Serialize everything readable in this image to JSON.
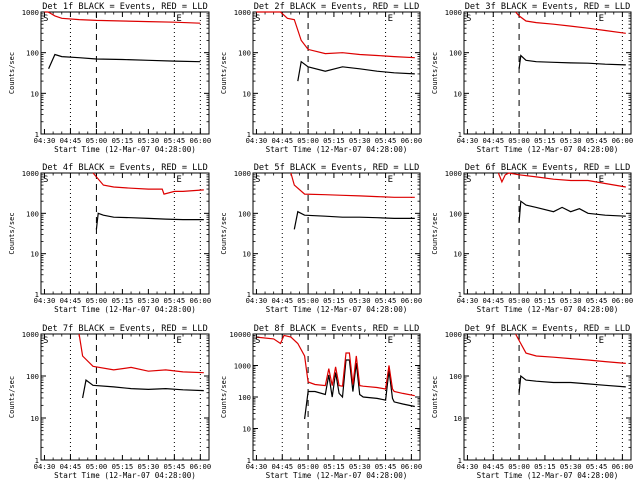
{
  "chart_data": [
    {
      "type": "line",
      "title": "Det 1f BLACK = Events, RED = LLD",
      "ymax": 1000,
      "ylabel": "Counts/sec",
      "xlabel": "Start Time (12-Mar-07 04:28:00)",
      "markers": {
        "S": "S",
        "E": "E"
      },
      "x_ticks": [
        "04:30",
        "04:45",
        "05:00",
        "05:15",
        "05:30",
        "05:45",
        "06:00"
      ],
      "y_ticks": [
        "1",
        "10",
        "100",
        "1000"
      ],
      "events_level": 65,
      "lld_level": 550,
      "series": [
        {
          "name": "BLACK = Events",
          "color": "#000000",
          "x": [
            0,
            2,
            2.4,
            6,
            10,
            20,
            30,
            45,
            60,
            75,
            90
          ],
          "y": [
            null,
            null,
            40,
            90,
            80,
            75,
            70,
            68,
            65,
            62,
            60
          ]
        },
        {
          "name": "RED = LLD",
          "color": "#dd0000",
          "x": [
            0,
            2,
            3,
            6,
            10,
            20,
            30,
            45,
            60,
            75,
            90
          ],
          "y": [
            1000,
            1000,
            950,
            800,
            700,
            650,
            620,
            600,
            580,
            560,
            530
          ]
        }
      ]
    },
    {
      "type": "line",
      "title": "Det 2f BLACK = Events, RED = LLD",
      "ymax": 1000,
      "ylabel": "Counts/sec",
      "xlabel": "Start Time (12-Mar-07 04:28:00)",
      "markers": {
        "S": "S",
        "E": "E"
      },
      "x_ticks": [
        "04:30",
        "04:45",
        "05:00",
        "05:15",
        "05:30",
        "05:45",
        "06:00"
      ],
      "y_ticks": [
        "1",
        "10",
        "100",
        "1000"
      ],
      "series": [
        {
          "name": "BLACK = Events",
          "color": "#000000",
          "x": [
            24,
            26,
            30,
            40,
            50,
            60,
            70,
            80,
            92
          ],
          "y": [
            20,
            60,
            45,
            35,
            45,
            40,
            35,
            32,
            30
          ]
        },
        {
          "name": "RED = LLD",
          "color": "#dd0000",
          "x": [
            0,
            14,
            18,
            22,
            26,
            30,
            40,
            50,
            60,
            70,
            80,
            92
          ],
          "y": [
            1000,
            1000,
            700,
            650,
            200,
            120,
            95,
            100,
            90,
            85,
            80,
            75
          ]
        }
      ]
    },
    {
      "type": "line",
      "title": "Det 3f BLACK = Events, RED = LLD",
      "ymax": 1000,
      "ylabel": "Counts/sec",
      "xlabel": "Start Time (12-Mar-07 04:28:00)",
      "markers": {
        "S": "S",
        "E": "E"
      },
      "x_ticks": [
        "04:30",
        "04:45",
        "05:00",
        "05:15",
        "05:30",
        "05:45",
        "06:00"
      ],
      "y_ticks": [
        "1",
        "10",
        "100",
        "1000"
      ],
      "series": [
        {
          "name": "BLACK = Events",
          "color": "#000000",
          "x": [
            30,
            31,
            34,
            40,
            50,
            60,
            70,
            80,
            92
          ],
          "y": [
            40,
            85,
            65,
            60,
            58,
            56,
            55,
            52,
            50
          ]
        },
        {
          "name": "RED = LLD",
          "color": "#dd0000",
          "x": [
            28,
            30,
            34,
            40,
            50,
            60,
            70,
            80,
            92
          ],
          "y": [
            1000,
            800,
            600,
            550,
            500,
            450,
            400,
            350,
            300
          ]
        }
      ]
    },
    {
      "type": "line",
      "title": "Det 4f BLACK = Events, RED = LLD",
      "ymax": 1000,
      "ylabel": "Counts/sec",
      "xlabel": "Start Time (12-Mar-07 04:28:00)",
      "markers": {
        "S": "S",
        "E": "E"
      },
      "x_ticks": [
        "04:30",
        "04:45",
        "05:00",
        "05:15",
        "05:30",
        "05:45",
        "06:00"
      ],
      "y_ticks": [
        "1",
        "10",
        "100",
        "1000"
      ],
      "series": [
        {
          "name": "BLACK = Events",
          "color": "#000000",
          "x": [
            30,
            31,
            34,
            40,
            50,
            60,
            70,
            80,
            92
          ],
          "y": [
            40,
            100,
            90,
            80,
            78,
            75,
            72,
            70,
            70
          ]
        },
        {
          "name": "RED = LLD",
          "color": "#dd0000",
          "x": [
            28,
            30,
            34,
            40,
            50,
            60,
            68,
            69,
            75,
            80,
            92
          ],
          "y": [
            1000,
            800,
            500,
            450,
            420,
            400,
            400,
            300,
            350,
            350,
            380
          ]
        }
      ]
    },
    {
      "type": "line",
      "title": "Det 5f BLACK = Events, RED = LLD",
      "ymax": 1000,
      "ylabel": "Counts/sec",
      "xlabel": "Start Time (12-Mar-07 04:28:00)",
      "markers": {
        "S": "S",
        "E": "E"
      },
      "x_ticks": [
        "04:30",
        "04:45",
        "05:00",
        "05:15",
        "05:30",
        "05:45",
        "06:00"
      ],
      "y_ticks": [
        "1",
        "10",
        "100",
        "1000"
      ],
      "series": [
        {
          "name": "BLACK = Events",
          "color": "#000000",
          "x": [
            22,
            24,
            28,
            40,
            50,
            60,
            70,
            80,
            92
          ],
          "y": [
            40,
            110,
            90,
            85,
            80,
            80,
            78,
            75,
            75
          ]
        },
        {
          "name": "RED = LLD",
          "color": "#dd0000",
          "x": [
            20,
            22,
            28,
            40,
            50,
            60,
            70,
            80,
            92
          ],
          "y": [
            1000,
            500,
            300,
            290,
            280,
            270,
            260,
            250,
            250
          ]
        }
      ]
    },
    {
      "type": "line",
      "title": "Det 6f BLACK = Events, RED = LLD",
      "ymax": 1000,
      "ylabel": "Counts/sec",
      "xlabel": "Start Time (12-Mar-07 04:28:00)",
      "markers": {
        "S": "S",
        "E": "E"
      },
      "x_ticks": [
        "04:30",
        "04:45",
        "05:00",
        "05:15",
        "05:30",
        "05:45",
        "06:00"
      ],
      "y_ticks": [
        "1",
        "10",
        "100",
        "1000"
      ],
      "series": [
        {
          "name": "BLACK = Events",
          "color": "#000000",
          "x": [
            30,
            31,
            34,
            40,
            50,
            55,
            60,
            65,
            70,
            80,
            92
          ],
          "y": [
            60,
            200,
            160,
            140,
            110,
            140,
            110,
            130,
            100,
            90,
            85
          ]
        },
        {
          "name": "RED = LLD",
          "color": "#dd0000",
          "x": [
            18,
            20,
            22,
            24,
            30,
            40,
            50,
            60,
            70,
            80,
            92
          ],
          "y": [
            1000,
            600,
            900,
            1000,
            900,
            800,
            700,
            650,
            650,
            550,
            450
          ]
        }
      ]
    },
    {
      "type": "line",
      "title": "Det 7f BLACK = Events, RED = LLD",
      "ymax": 1000,
      "ylabel": "Counts/sec",
      "xlabel": "Start Time (12-Mar-07 04:28:00)",
      "markers": {
        "S": "S",
        "E": "E"
      },
      "x_ticks": [
        "04:30",
        "04:45",
        "05:00",
        "05:15",
        "05:30",
        "05:45",
        "06:00"
      ],
      "y_ticks": [
        "1",
        "10",
        "100",
        "1000"
      ],
      "series": [
        {
          "name": "BLACK = Events",
          "color": "#000000",
          "x": [
            22,
            24,
            28,
            40,
            50,
            60,
            70,
            80,
            92
          ],
          "y": [
            30,
            80,
            60,
            55,
            50,
            48,
            50,
            47,
            45
          ]
        },
        {
          "name": "RED = LLD",
          "color": "#dd0000",
          "x": [
            20,
            22,
            28,
            40,
            50,
            60,
            70,
            80,
            92
          ],
          "y": [
            1000,
            300,
            170,
            140,
            160,
            130,
            140,
            125,
            120
          ]
        }
      ]
    },
    {
      "type": "line",
      "title": "Det 8f BLACK = Events, RED = LLD",
      "ymax": 10000,
      "ylabel": "Counts/sec",
      "xlabel": "Start Time (12-Mar-07 04:28:00)",
      "markers": {
        "S": "S",
        "E": "E"
      },
      "x_ticks": [
        "04:30",
        "04:45",
        "05:00",
        "05:15",
        "05:30",
        "05:45",
        "06:00"
      ],
      "y_ticks": [
        "1",
        "10",
        "100",
        "1000",
        "10000"
      ],
      "series": [
        {
          "name": "BLACK = Events",
          "color": "#000000",
          "x": [
            28,
            30,
            34,
            40,
            42,
            44,
            46,
            48,
            50,
            52,
            54,
            56,
            58,
            60,
            62,
            70,
            75,
            77,
            79,
            80,
            85,
            92
          ],
          "y": [
            20,
            150,
            150,
            120,
            500,
            100,
            600,
            130,
            100,
            1500,
            1500,
            150,
            1200,
            120,
            100,
            90,
            80,
            700,
            90,
            70,
            60,
            50
          ]
        },
        {
          "name": "RED = LLD",
          "color": "#dd0000",
          "x": [
            0,
            10,
            14,
            16,
            20,
            24,
            28,
            30,
            34,
            40,
            42,
            44,
            46,
            48,
            50,
            52,
            54,
            56,
            58,
            60,
            62,
            70,
            75,
            77,
            79,
            80,
            85,
            92
          ],
          "y": [
            8000,
            7000,
            5000,
            9000,
            8000,
            5000,
            2000,
            300,
            250,
            230,
            800,
            230,
            900,
            230,
            220,
            2500,
            2500,
            250,
            2000,
            230,
            220,
            200,
            180,
            1000,
            180,
            150,
            130,
            110
          ]
        }
      ]
    },
    {
      "type": "line",
      "title": "Det 9f BLACK = Events, RED = LLD",
      "ymax": 1000,
      "ylabel": "Counts/sec",
      "xlabel": "Start Time (12-Mar-07 04:28:00)",
      "markers": {
        "S": "S",
        "E": "E"
      },
      "x_ticks": [
        "04:30",
        "04:45",
        "05:00",
        "05:15",
        "05:30",
        "05:45",
        "06:00"
      ],
      "y_ticks": [
        "1",
        "10",
        "100",
        "1000"
      ],
      "series": [
        {
          "name": "BLACK = Events",
          "color": "#000000",
          "x": [
            30,
            31,
            34,
            40,
            50,
            60,
            70,
            80,
            92
          ],
          "y": [
            40,
            100,
            80,
            75,
            70,
            70,
            65,
            60,
            55
          ]
        },
        {
          "name": "RED = LLD",
          "color": "#dd0000",
          "x": [
            28,
            30,
            34,
            40,
            50,
            60,
            70,
            80,
            92
          ],
          "y": [
            1000,
            700,
            350,
            300,
            280,
            260,
            240,
            220,
            200
          ]
        }
      ]
    }
  ]
}
